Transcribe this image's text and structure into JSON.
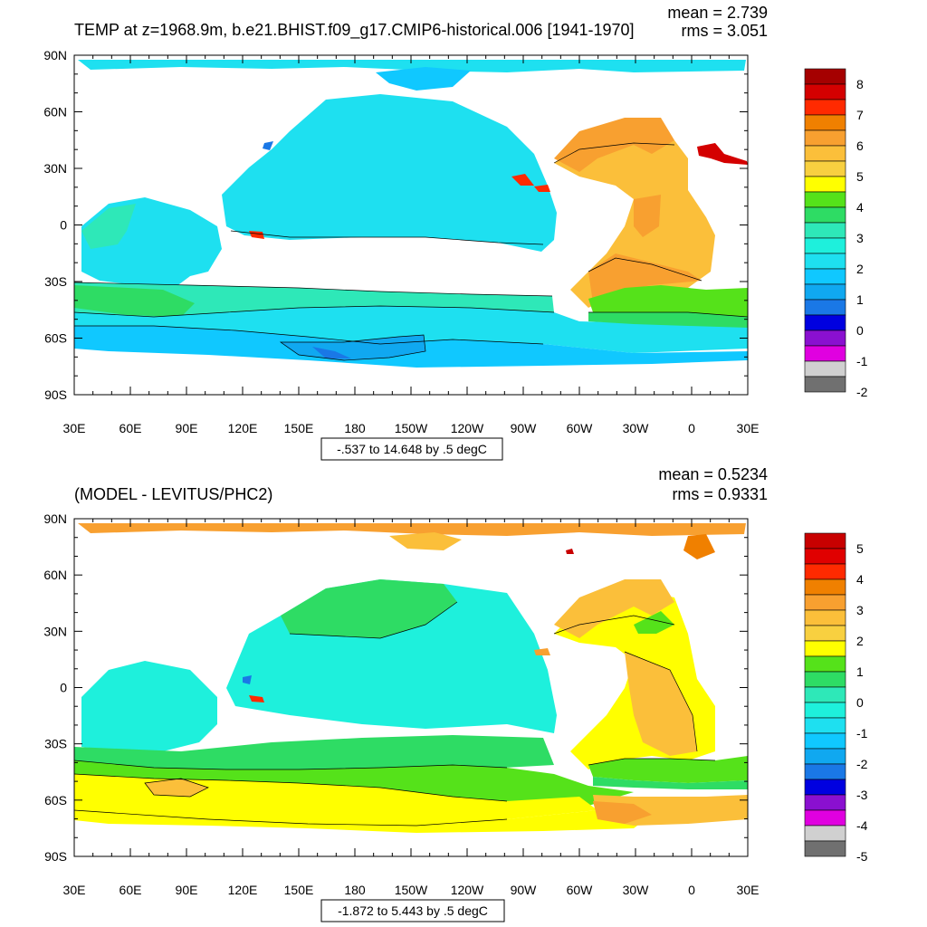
{
  "panels": [
    {
      "id": "top",
      "title": "TEMP at z=1968.9m, b.e21.BHIST.f09_g17.CMIP6-historical.006 [1941-1970]",
      "stats": {
        "mean": "mean = 2.739",
        "rms": "rms = 3.051"
      },
      "contour_info": "-.537 to 14.648 by .5 degC",
      "lat_ticks": [
        "90N",
        "60N",
        "30N",
        "0",
        "30S",
        "60S",
        "90S"
      ],
      "lon_ticks": [
        "30E",
        "60E",
        "90E",
        "120E",
        "150E",
        "180",
        "150W",
        "120W",
        "90W",
        "60W",
        "30W",
        "0",
        "30E"
      ],
      "colorbar": {
        "labels": [
          "8",
          "7",
          "6",
          "5",
          "4",
          "3",
          "2",
          "1",
          "0",
          "-1",
          "-2"
        ],
        "colors": [
          "#a50000",
          "#d40000",
          "#ff2a00",
          "#f08000",
          "#f8a030",
          "#fbbf3a",
          "#f8d040",
          "#ffff00",
          "#55e21a",
          "#2edc64",
          "#2ee8b8",
          "#1ef0dc",
          "#1ee0f0",
          "#10c8ff",
          "#10a8f0",
          "#1a78e6",
          "#0000e0",
          "#8a10d0",
          "#e000e0",
          "#d0d0d0",
          "#707070"
        ]
      }
    },
    {
      "id": "bottom",
      "title": "(MODEL - LEVITUS/PHC2)",
      "stats": {
        "mean": "mean = 0.5234",
        "rms": "rms = 0.9331"
      },
      "contour_info": "-1.872 to 5.443 by .5 degC",
      "lat_ticks": [
        "90N",
        "60N",
        "30N",
        "0",
        "30S",
        "60S",
        "90S"
      ],
      "lon_ticks": [
        "30E",
        "60E",
        "90E",
        "120E",
        "150E",
        "180",
        "150W",
        "120W",
        "90W",
        "60W",
        "30W",
        "0",
        "30E"
      ],
      "colorbar": {
        "labels": [
          "5",
          "4",
          "3",
          "2",
          "1",
          "0",
          "-1",
          "-2",
          "-3",
          "-4",
          "-5"
        ],
        "colors": [
          "#c80000",
          "#e00000",
          "#ff2a00",
          "#f08000",
          "#f8a030",
          "#fbbf3a",
          "#f8d040",
          "#ffff00",
          "#55e21a",
          "#2edc64",
          "#2ee8b8",
          "#1ef0dc",
          "#1ee0f0",
          "#10c8ff",
          "#10a8f0",
          "#1a78e6",
          "#0000e0",
          "#8a10d0",
          "#e000e0",
          "#d0d0d0",
          "#707070"
        ]
      }
    }
  ]
}
